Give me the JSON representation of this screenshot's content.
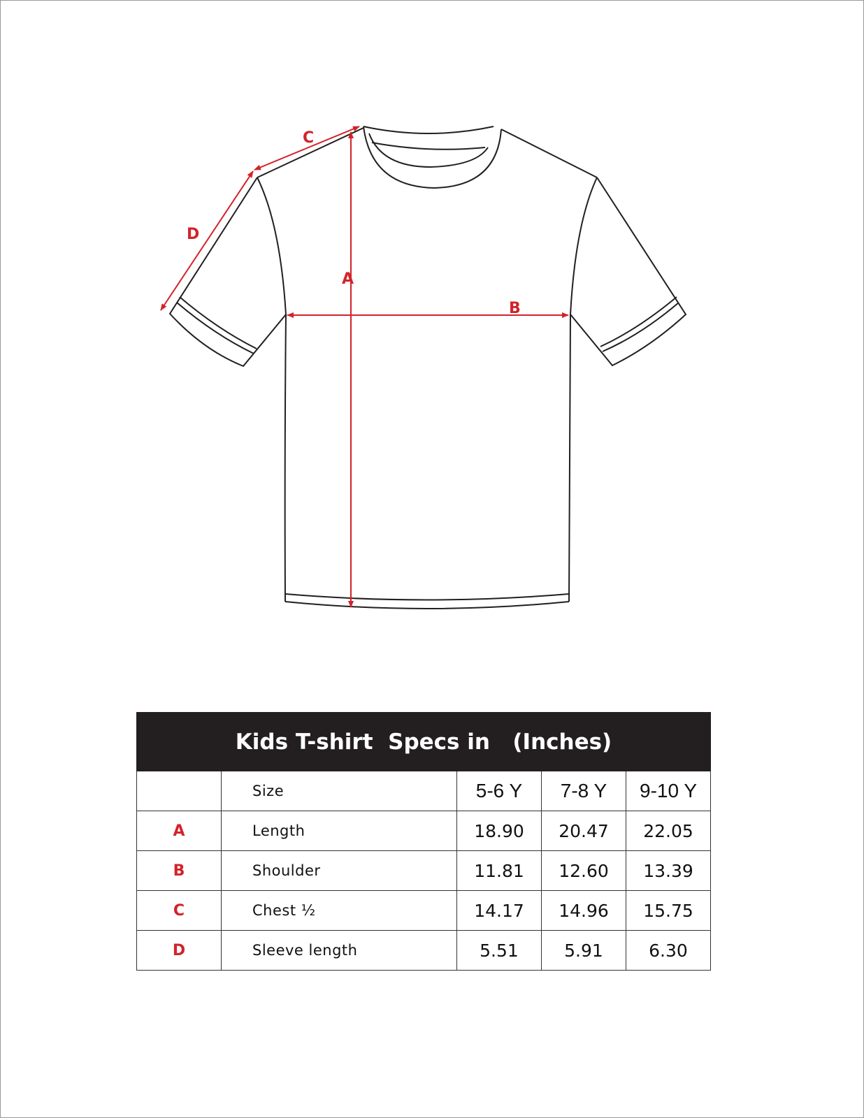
{
  "diagram": {
    "labels": {
      "A": "A",
      "B": "B",
      "C": "C",
      "D": "D"
    },
    "arrow_color": "#d2232a",
    "outline_color": "#231f20"
  },
  "table": {
    "title": "Kids T-shirt  Specs in   (Inches)",
    "size_label": "Size",
    "sizes": [
      "5-6 Y",
      "7-8 Y",
      "9-10 Y"
    ],
    "rows": [
      {
        "code": "A",
        "name": "Length",
        "values": [
          "18.90",
          "20.47",
          "22.05"
        ]
      },
      {
        "code": "B",
        "name": "Shoulder",
        "values": [
          "11.81",
          "12.60",
          "13.39"
        ]
      },
      {
        "code": "C",
        "name": "Chest ½",
        "values": [
          "14.17",
          "14.96",
          "15.75"
        ]
      },
      {
        "code": "D",
        "name": "Sleeve length",
        "values": [
          "5.51",
          "5.91",
          "6.30"
        ]
      }
    ],
    "header_bg": "#231f20",
    "code_color": "#d2232a"
  }
}
